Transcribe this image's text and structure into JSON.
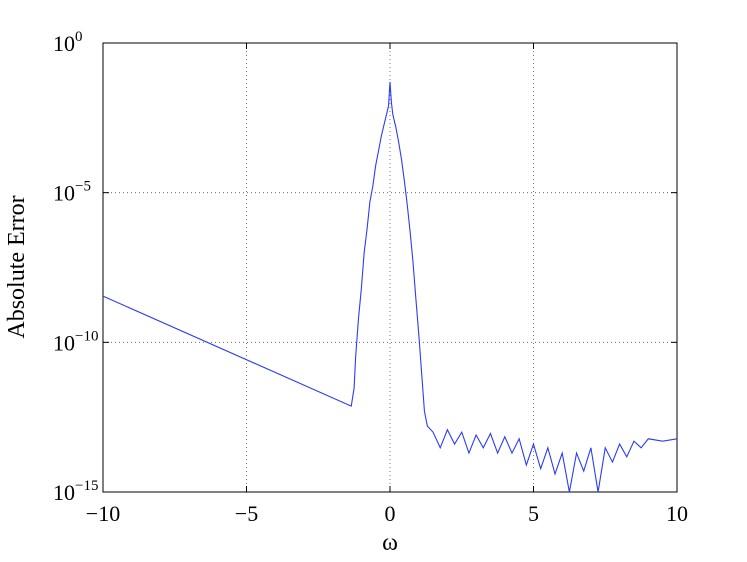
{
  "chart_data": {
    "type": "line",
    "xlabel": "ω",
    "ylabel": "Absolute Error",
    "log_y": true,
    "grid": true,
    "xlim": [
      -10,
      10
    ],
    "ylim": [
      1e-15,
      1
    ],
    "xticks": [
      {
        "value": -10,
        "label": "−10"
      },
      {
        "value": -5,
        "label": "−5"
      },
      0,
      5,
      10
    ],
    "yticks": [
      {
        "value": 1e-15,
        "label": "10",
        "exponent": "−15"
      },
      {
        "value": 1e-10,
        "label": "10",
        "exponent": "−10"
      },
      {
        "value": 1e-05,
        "label": "10",
        "exponent": "−5"
      },
      {
        "value": 1,
        "label": "10",
        "exponent": "0"
      }
    ],
    "series": [
      {
        "color": "#2b3cf5",
        "x": [
          -10,
          -1.35,
          -1.25,
          -1.2,
          -1.1,
          -1.0,
          -0.9,
          -0.8,
          -0.7,
          -0.6,
          -0.5,
          -0.4,
          -0.3,
          -0.2,
          -0.1,
          -0.05,
          0,
          0.05,
          0.1,
          0.2,
          0.3,
          0.4,
          0.5,
          0.6,
          0.7,
          0.8,
          0.9,
          1.0,
          1.1,
          1.2,
          1.3,
          1.5,
          1.75,
          2.0,
          2.25,
          2.5,
          2.75,
          3.0,
          3.25,
          3.5,
          3.75,
          4.0,
          4.25,
          4.5,
          4.75,
          5.0,
          5.25,
          5.5,
          5.75,
          6.0,
          6.25,
          6.5,
          6.75,
          7.0,
          7.25,
          7.5,
          7.75,
          8.0,
          8.25,
          8.5,
          8.75,
          9.0,
          9.5,
          10.0
        ],
        "values": [
          3.5e-09,
          7.4e-13,
          3e-12,
          3e-11,
          6e-10,
          6e-09,
          1e-07,
          6e-07,
          5e-06,
          1.6e-05,
          8e-05,
          0.00025,
          0.0008,
          0.002,
          0.005,
          0.008,
          0.05,
          0.01,
          0.004,
          0.0016,
          0.0005,
          0.00013,
          2.5e-05,
          4e-06,
          5e-07,
          5e-08,
          3e-09,
          2e-10,
          1e-11,
          5e-13,
          1.6e-13,
          1e-13,
          3e-14,
          1.2e-13,
          4e-14,
          1e-13,
          2e-14,
          8e-14,
          3e-14,
          9e-14,
          2e-14,
          7e-14,
          2e-14,
          6e-14,
          8e-15,
          4e-14,
          6e-15,
          3e-14,
          4e-15,
          2e-14,
          1e-15,
          2e-14,
          5e-15,
          3e-14,
          1e-15,
          3e-14,
          1e-14,
          4e-14,
          1.5e-14,
          5e-14,
          3e-14,
          6e-14,
          5e-14,
          6e-14
        ]
      }
    ]
  }
}
